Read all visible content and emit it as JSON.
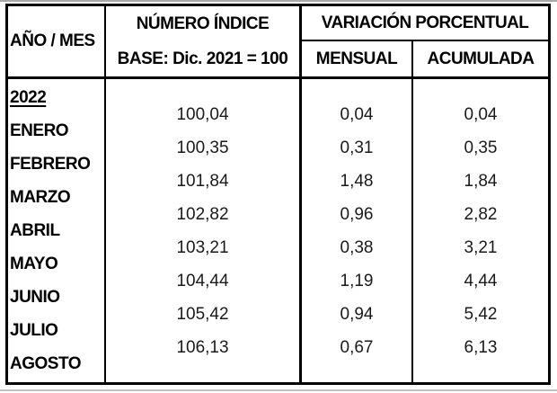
{
  "table": {
    "header": {
      "year_month": "AÑO / MES",
      "index_title": "NÚMERO ÍNDICE",
      "index_base": "BASE: Dic. 2021 = 100",
      "variation_title": "VARIACIÓN PORCENTUAL",
      "monthly": "MENSUAL",
      "accumulated": "ACUMULADA"
    },
    "year": "2022",
    "rows": [
      {
        "month": "ENERO",
        "index": "100,04",
        "monthly": "0,04",
        "accumulated": "0,04"
      },
      {
        "month": "FEBRERO",
        "index": "100,35",
        "monthly": "0,31",
        "accumulated": "0,35"
      },
      {
        "month": "MARZO",
        "index": "101,84",
        "monthly": "1,48",
        "accumulated": "1,84"
      },
      {
        "month": "ABRIL",
        "index": "102,82",
        "monthly": "0,96",
        "accumulated": "2,82"
      },
      {
        "month": "MAYO",
        "index": "103,21",
        "monthly": "0,38",
        "accumulated": "3,21"
      },
      {
        "month": "JUNIO",
        "index": "104,44",
        "monthly": "1,19",
        "accumulated": "4,44"
      },
      {
        "month": "JULIO",
        "index": "105,42",
        "monthly": "0,94",
        "accumulated": "5,42"
      },
      {
        "month": "AGOSTO",
        "index": "106,13",
        "monthly": "0,67",
        "accumulated": "6,13"
      }
    ]
  },
  "colors": {
    "border": "#000000",
    "header_text": "#000000",
    "value_text": "#1a1a1a",
    "background": "#ffffff"
  }
}
